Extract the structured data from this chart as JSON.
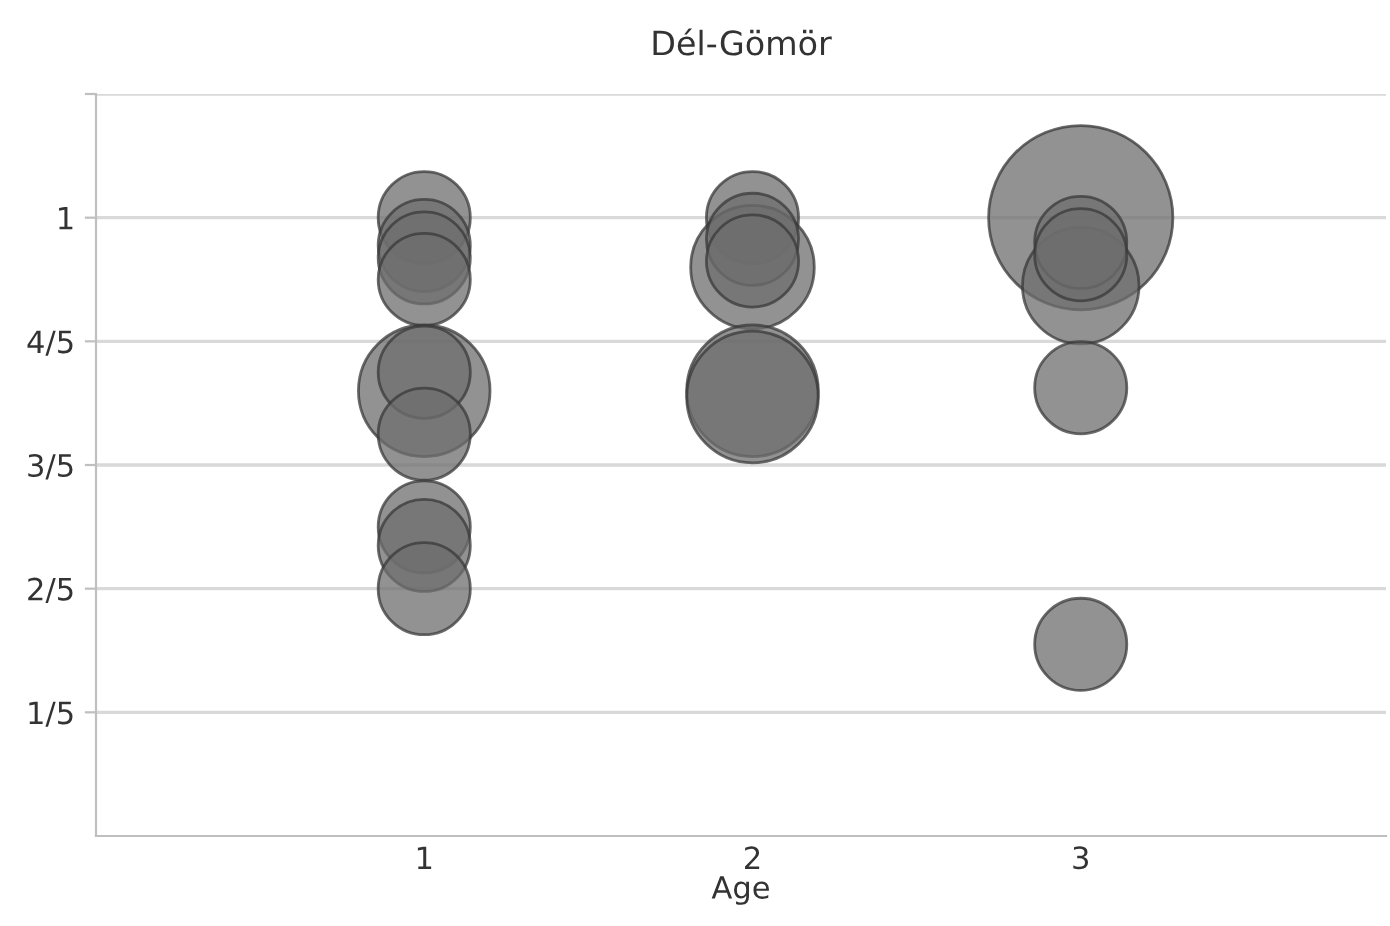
{
  "chart_data": {
    "type": "bubble",
    "title": "Dél-Gömör",
    "xlabel": "Age",
    "series": [
      {
        "color": "#6e6e6e",
        "x": [
          1,
          1,
          1,
          1,
          1,
          1,
          1,
          1,
          1,
          1
        ],
        "values": [
          1.0,
          0.955,
          0.935,
          0.9,
          0.72,
          0.75,
          0.65,
          0.5,
          0.47,
          0.4
        ],
        "sizes": [
          0.25,
          0.25,
          0.25,
          0.25,
          0.51,
          0.25,
          0.25,
          0.25,
          0.25,
          0.25
        ]
      },
      {
        "color": "#6e6e6e",
        "x": [
          2,
          2,
          2,
          2,
          2,
          2
        ],
        "values": [
          1.0,
          0.92,
          0.965,
          0.93,
          0.72,
          0.71
        ],
        "sizes": [
          0.25,
          0.45,
          0.25,
          0.25,
          0.51,
          0.51
        ]
      },
      {
        "color": "#6e6e6e",
        "x": [
          3,
          3,
          3,
          3,
          3,
          3
        ],
        "values": [
          1.0,
          0.89,
          0.96,
          0.94,
          0.725,
          0.31
        ],
        "sizes": [
          1,
          0.4,
          0.25,
          0.25,
          0.25,
          0.25
        ]
      }
    ],
    "xlim": [
      0,
      3.93
    ],
    "xticks": [
      1,
      2,
      3
    ],
    "ylim": [
      0,
      1.2
    ],
    "yticks": [
      {
        "value": 0.2,
        "label": "1/5"
      },
      {
        "value": 0.4,
        "label": "2/5"
      },
      {
        "value": 0.6,
        "label": "3/5"
      },
      {
        "value": 0.8,
        "label": "4/5"
      },
      {
        "value": 1.0,
        "label": "1"
      },
      {
        "value": 1.2,
        "label": null
      }
    ],
    "grid": "y",
    "legend": false
  }
}
